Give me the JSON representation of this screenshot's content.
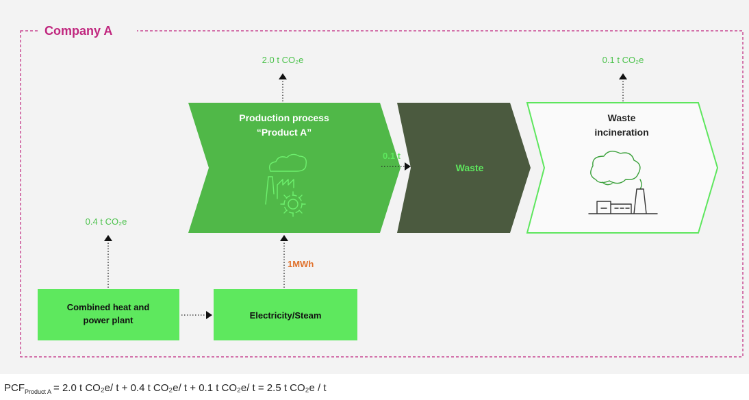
{
  "company": "Company A",
  "emissions": {
    "production": "2.0 t CO₂e",
    "incineration": "0.1 t CO₂e",
    "chp": "0.4 t CO₂e"
  },
  "nodes": [
    {
      "label": [
        "Production process",
        "“Product A”"
      ]
    },
    {
      "label": [
        "Waste"
      ]
    },
    {
      "label": [
        "Waste",
        "incineration"
      ]
    },
    {
      "label": [
        "Combined heat and",
        "power plant"
      ]
    },
    {
      "label": [
        "Electricity/Steam"
      ]
    }
  ],
  "flows": {
    "waste": "0.1 t",
    "energy": "1MWh"
  },
  "formula": {
    "symbol": "PCF",
    "subscript": "Product A",
    "expression": "= 2.0 t CO₂e/ t + 0.4 t CO₂e/ t + 0.1 t CO₂e/ t = 2.5 t CO₂e / t"
  }
}
